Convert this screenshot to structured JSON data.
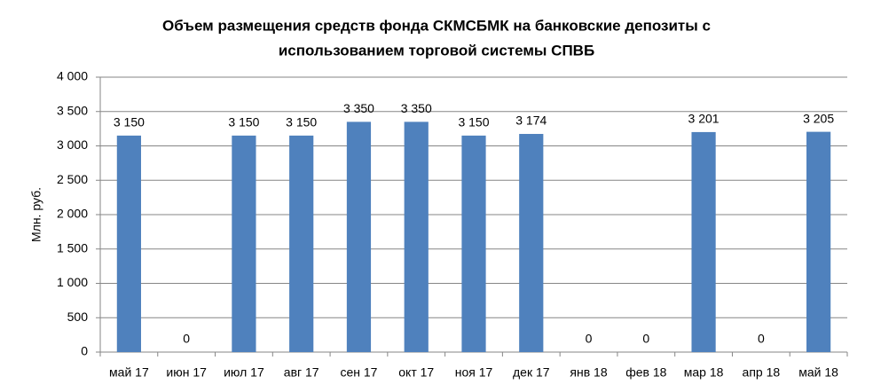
{
  "chart_data": {
    "type": "bar",
    "title": [
      "Объем размещения средств фонда СКМСБМК на банковские депозиты с",
      "использованием торговой системы СПВБ"
    ],
    "y_label": "Млн. руб.",
    "categories": [
      "май 17",
      "июн 17",
      "июл 17",
      "авг 17",
      "сен 17",
      "окт 17",
      "ноя 17",
      "дек 17",
      "янв 18",
      "фев 18",
      "мар 18",
      "апр 18",
      "май 18"
    ],
    "values": [
      3150,
      0,
      3150,
      3150,
      3350,
      3350,
      3150,
      3174,
      0,
      0,
      3201,
      0,
      3205
    ],
    "value_labels": [
      "3 150",
      "0",
      "3 150",
      "3 150",
      "3 350",
      "3 350",
      "3 150",
      "3 174",
      "0",
      "0",
      "3 201",
      "0",
      "3 205"
    ],
    "color": "#4f81bd",
    "ylim": [
      0,
      4000
    ],
    "yticks": [
      0,
      500,
      {
        "value": 1000,
        "label": "1 000"
      },
      {
        "value": 1500,
        "label": "1 500"
      },
      {
        "value": 2000,
        "label": "2 000"
      },
      {
        "value": 2500,
        "label": "2 500"
      },
      {
        "value": 3000,
        "label": "3 000"
      },
      {
        "value": 3500,
        "label": "3 500"
      },
      {
        "value": 4000,
        "label": "4 000"
      }
    ],
    "grid": true
  }
}
